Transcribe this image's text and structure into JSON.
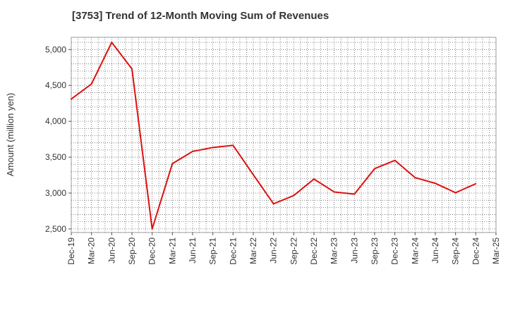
{
  "chart_data": {
    "type": "line",
    "title": "[3753]  Trend of 12-Month Moving Sum of Revenues",
    "xlabel": "",
    "ylabel": "Amount (million yen)",
    "x_ticks": [
      "Dec-19",
      "Mar-20",
      "Jun-20",
      "Sep-20",
      "Dec-20",
      "Mar-21",
      "Jun-21",
      "Sep-21",
      "Dec-21",
      "Mar-22",
      "Jun-22",
      "Sep-22",
      "Dec-22",
      "Mar-23",
      "Jun-23",
      "Sep-23",
      "Dec-23",
      "Mar-24",
      "Jun-24",
      "Sep-24",
      "Dec-24",
      "Mar-25"
    ],
    "y_ticks": [
      2500,
      3000,
      3500,
      4000,
      4500,
      5000
    ],
    "y_tick_labels": [
      "2,500",
      "3,000",
      "3,500",
      "4,000",
      "4,500",
      "5,000"
    ],
    "ylim": [
      2450,
      5170
    ],
    "grid": true,
    "line_color": "#dd1111",
    "series": [
      {
        "x": [
          "Dec-19",
          "Mar-20",
          "Jun-20",
          "Sep-20",
          "Dec-20",
          "Mar-21",
          "Jun-21",
          "Sep-21",
          "Dec-21",
          "Mar-22",
          "Jun-22",
          "Sep-22",
          "Dec-22",
          "Mar-23",
          "Jun-23",
          "Sep-23",
          "Dec-23",
          "Mar-24",
          "Jun-24",
          "Sep-24",
          "Dec-24"
        ],
        "values": [
          4310,
          4520,
          5100,
          4730,
          2500,
          3410,
          3580,
          3635,
          3665,
          3255,
          2850,
          2965,
          3195,
          3015,
          2985,
          3340,
          3455,
          3215,
          3135,
          3005,
          3130
        ]
      }
    ]
  }
}
